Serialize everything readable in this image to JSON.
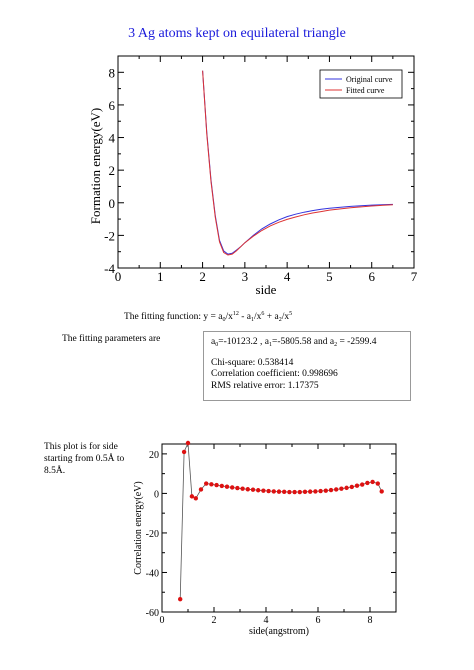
{
  "page_title": "3 Ag atoms kept on equilateral triangle",
  "fitting_function": {
    "prefix": "The fitting function: y = a",
    "s0": "0",
    "m1": "/x",
    "e12": "12",
    "m2": " - a",
    "s1": "1",
    "m3": "/x",
    "e6": "6",
    "m4": " + a",
    "s2": "2",
    "m5": "/x",
    "e5": "5"
  },
  "fitting_parameters_label": "The fitting parameters are",
  "params": {
    "a0_pre": "a",
    "a0_sub": "0",
    "a0_val": "=-10123.2 , a",
    "a1_sub": "1",
    "a1_val": "=-5805.58  and a",
    "a2_sub": "2",
    "a2_val": " = -2599.4",
    "chi": "Chi-square: 0.538414",
    "corr": "Correlation coefficient: 0.998696",
    "rms": "RMS relative error: 1.17375"
  },
  "note": "This plot is for side starting from 0.5Å to 8.5Å.",
  "chart_data": [
    {
      "type": "line",
      "title": "",
      "xlabel": "side",
      "ylabel": "Formation energy(eV)",
      "xlim": [
        0,
        7
      ],
      "ylim": [
        -4,
        9
      ],
      "xticks": [
        "0",
        "1",
        "2",
        "3",
        "4",
        "5",
        "6",
        "7"
      ],
      "yticks": [
        "-4",
        "-2",
        "0",
        "2",
        "4",
        "6",
        "8"
      ],
      "legend_position": "top-right",
      "series": [
        {
          "name": "Original curve",
          "color": "#3333dd",
          "x": [
            2.0,
            2.1,
            2.2,
            2.3,
            2.4,
            2.5,
            2.6,
            2.7,
            2.8,
            2.9,
            3.0,
            3.2,
            3.4,
            3.6,
            3.8,
            4.0,
            4.2,
            4.4,
            4.6,
            4.8,
            5.0,
            5.5,
            6.0,
            6.5
          ],
          "y": [
            8.1,
            4.3,
            1.4,
            -0.8,
            -2.3,
            -2.95,
            -3.15,
            -3.1,
            -2.9,
            -2.7,
            -2.45,
            -2.0,
            -1.6,
            -1.3,
            -1.05,
            -0.85,
            -0.7,
            -0.58,
            -0.48,
            -0.4,
            -0.33,
            -0.22,
            -0.14,
            -0.1
          ]
        },
        {
          "name": "Fitted curve",
          "color": "#dd3333",
          "x": [
            2.0,
            2.1,
            2.2,
            2.3,
            2.4,
            2.5,
            2.6,
            2.7,
            2.8,
            2.9,
            3.0,
            3.2,
            3.4,
            3.6,
            3.8,
            4.0,
            4.2,
            4.4,
            4.6,
            4.8,
            5.0,
            5.5,
            6.0,
            6.5
          ],
          "y": [
            8.1,
            4.2,
            1.3,
            -0.9,
            -2.4,
            -3.05,
            -3.2,
            -3.15,
            -2.95,
            -2.7,
            -2.45,
            -2.05,
            -1.7,
            -1.42,
            -1.2,
            -1.02,
            -0.87,
            -0.74,
            -0.63,
            -0.54,
            -0.45,
            -0.3,
            -0.2,
            -0.12
          ]
        }
      ]
    },
    {
      "type": "scatter",
      "title": "",
      "xlabel": "side(angstrom)",
      "ylabel": "Correlation energy(eV)",
      "xlim": [
        0,
        9
      ],
      "ylim": [
        -60,
        25
      ],
      "xticks": [
        "0",
        "2",
        "4",
        "6",
        "8"
      ],
      "yticks": [
        "-60",
        "-40",
        "-20",
        "0",
        "20"
      ],
      "series": [
        {
          "color": "#dd1111",
          "x": [
            0.7,
            0.85,
            1.0,
            1.15,
            1.3,
            1.5,
            1.7,
            1.9,
            2.1,
            2.3,
            2.5,
            2.7,
            2.9,
            3.1,
            3.3,
            3.5,
            3.7,
            3.9,
            4.1,
            4.3,
            4.5,
            4.7,
            4.9,
            5.1,
            5.3,
            5.5,
            5.7,
            5.9,
            6.1,
            6.3,
            6.5,
            6.7,
            6.9,
            7.1,
            7.3,
            7.5,
            7.7,
            7.9,
            8.1,
            8.3,
            8.45
          ],
          "y": [
            -53.5,
            21.0,
            25.5,
            -1.5,
            -2.5,
            2.0,
            5.0,
            4.6,
            4.2,
            3.8,
            3.4,
            3.0,
            2.7,
            2.4,
            2.1,
            1.9,
            1.6,
            1.4,
            1.2,
            1.0,
            0.9,
            0.8,
            0.7,
            0.7,
            0.7,
            0.8,
            0.9,
            1.0,
            1.2,
            1.4,
            1.7,
            2.0,
            2.4,
            2.8,
            3.3,
            3.9,
            4.5,
            5.3,
            5.8,
            5.0,
            1.0
          ]
        }
      ]
    }
  ]
}
